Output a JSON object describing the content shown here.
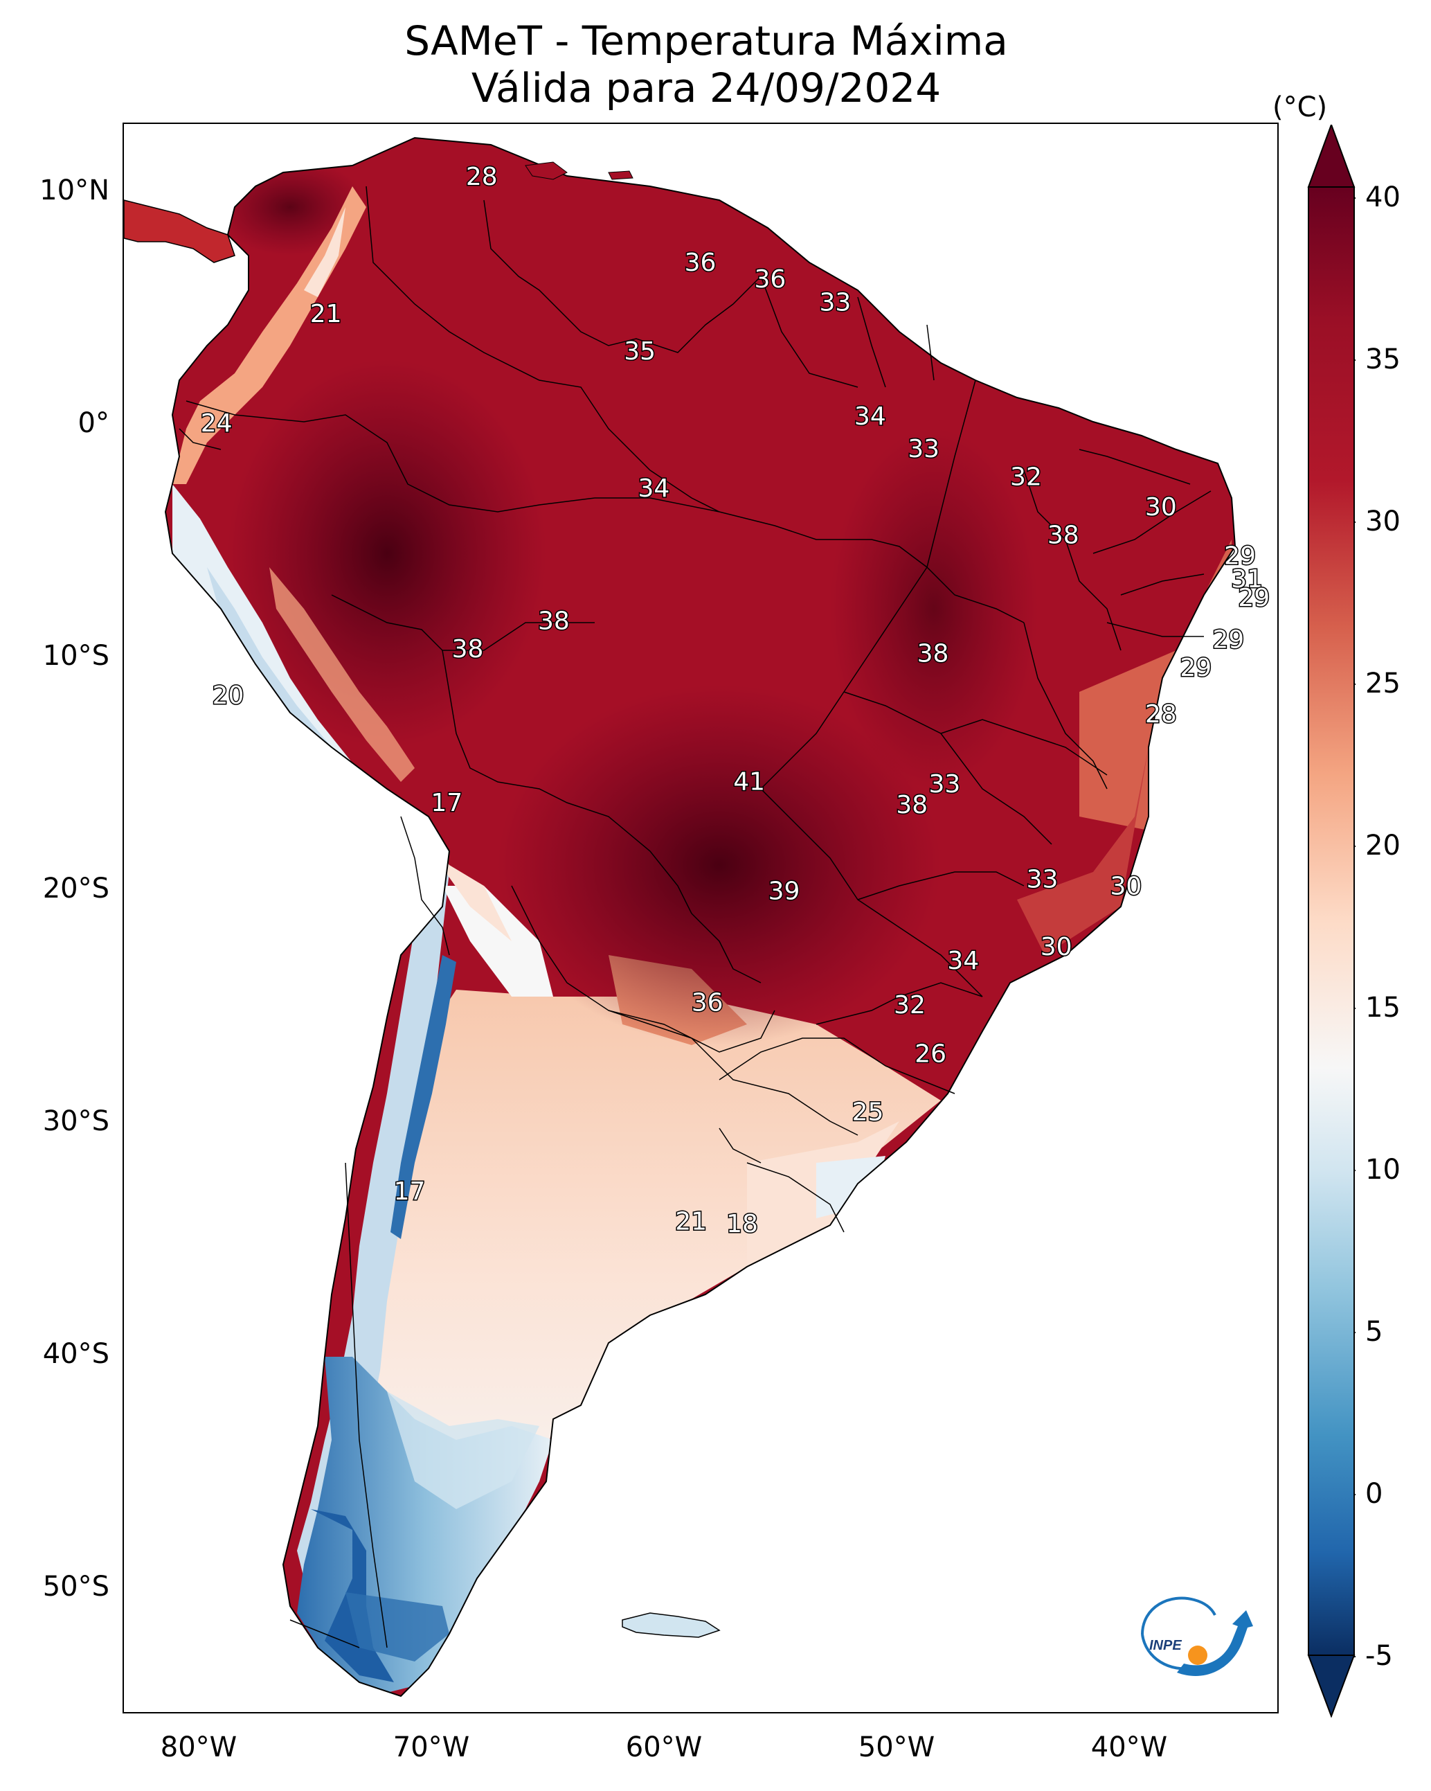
{
  "header": {
    "title": "SAMeT - Temperatura Máxima",
    "subtitle": "Válida para 24/09/2024"
  },
  "axes": {
    "lat_labels": [
      "10°N",
      "0°",
      "10°S",
      "20°S",
      "30°S",
      "40°S",
      "50°S"
    ],
    "lon_labels": [
      "80°W",
      "70°W",
      "60°W",
      "50°W",
      "40°W"
    ]
  },
  "colorbar": {
    "unit": "(°C)",
    "ticks": [
      "40",
      "35",
      "30",
      "25",
      "20",
      "15",
      "10",
      "5",
      "0",
      "-5"
    ],
    "min": -5,
    "max": 40,
    "colors": [
      "#0b2e62",
      "#2166ac",
      "#4393c3",
      "#92c5de",
      "#d1e5f0",
      "#f7f7f7",
      "#fddbc7",
      "#f4a582",
      "#d6604d",
      "#b2182b",
      "#67001f"
    ]
  },
  "map": {
    "region": "South America",
    "temperature_labels": [
      {
        "value": "28",
        "lon": -67.3,
        "lat": 10.3
      },
      {
        "value": "21",
        "lon": -74.0,
        "lat": 4.4
      },
      {
        "value": "36",
        "lon": -57.9,
        "lat": 6.6
      },
      {
        "value": "36",
        "lon": -54.9,
        "lat": 5.9
      },
      {
        "value": "33",
        "lon": -52.1,
        "lat": 4.9
      },
      {
        "value": "35",
        "lon": -60.5,
        "lat": 2.8
      },
      {
        "value": "24",
        "lon": -78.7,
        "lat": -0.3
      },
      {
        "value": "34",
        "lon": -50.6,
        "lat": 0.0
      },
      {
        "value": "33",
        "lon": -48.3,
        "lat": -1.4
      },
      {
        "value": "32",
        "lon": -43.9,
        "lat": -2.6
      },
      {
        "value": "34",
        "lon": -59.9,
        "lat": -3.1
      },
      {
        "value": "30",
        "lon": -38.1,
        "lat": -3.9
      },
      {
        "value": "38",
        "lon": -42.3,
        "lat": -5.1
      },
      {
        "value": "29",
        "lon": -34.7,
        "lat": -6.0
      },
      {
        "value": "31",
        "lon": -34.4,
        "lat": -7.0
      },
      {
        "value": "29",
        "lon": -34.1,
        "lat": -7.8
      },
      {
        "value": "38",
        "lon": -64.2,
        "lat": -8.8
      },
      {
        "value": "38",
        "lon": -67.9,
        "lat": -10.0
      },
      {
        "value": "38",
        "lon": -47.9,
        "lat": -10.2
      },
      {
        "value": "29",
        "lon": -35.2,
        "lat": -9.6
      },
      {
        "value": "29",
        "lon": -36.6,
        "lat": -10.8
      },
      {
        "value": "20",
        "lon": -78.2,
        "lat": -12.0
      },
      {
        "value": "28",
        "lon": -38.1,
        "lat": -12.8
      },
      {
        "value": "41",
        "lon": -55.8,
        "lat": -15.7
      },
      {
        "value": "33",
        "lon": -47.4,
        "lat": -15.8
      },
      {
        "value": "38",
        "lon": -48.8,
        "lat": -16.7
      },
      {
        "value": "17",
        "lon": -68.8,
        "lat": -16.6
      },
      {
        "value": "33",
        "lon": -43.2,
        "lat": -19.9
      },
      {
        "value": "30",
        "lon": -39.6,
        "lat": -20.2
      },
      {
        "value": "39",
        "lon": -54.3,
        "lat": -20.4
      },
      {
        "value": "30",
        "lon": -42.6,
        "lat": -22.8
      },
      {
        "value": "34",
        "lon": -46.6,
        "lat": -23.4
      },
      {
        "value": "36",
        "lon": -57.6,
        "lat": -25.2
      },
      {
        "value": "32",
        "lon": -48.9,
        "lat": -25.3
      },
      {
        "value": "26",
        "lon": -48.0,
        "lat": -27.4
      },
      {
        "value": "25",
        "lon": -50.7,
        "lat": -29.9
      },
      {
        "value": "17",
        "lon": -70.4,
        "lat": -33.3
      },
      {
        "value": "21",
        "lon": -58.3,
        "lat": -34.6
      },
      {
        "value": "18",
        "lon": -56.1,
        "lat": -34.7
      }
    ]
  },
  "logo": {
    "text": "INPE"
  }
}
